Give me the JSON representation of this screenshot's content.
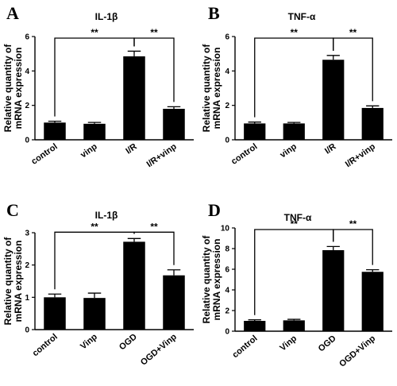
{
  "chart_data": [
    {
      "type": "bar",
      "panel": "A",
      "title": "IL-1β",
      "ylabel_lines": [
        "Relative quantity of",
        "mRNA expression"
      ],
      "categories": [
        "control",
        "vinp",
        "I/R",
        "I/R+vinp"
      ],
      "values": [
        1.0,
        0.93,
        4.85,
        1.8
      ],
      "errors": [
        0.08,
        0.08,
        0.3,
        0.12
      ],
      "ylim": [
        0,
        6
      ],
      "yticks": [
        0,
        2,
        4,
        6
      ],
      "significance": [
        {
          "from": 0,
          "to": 2,
          "label": "**"
        },
        {
          "from": 2,
          "to": 3,
          "label": "**"
        }
      ]
    },
    {
      "type": "bar",
      "panel": "B",
      "title": "TNF-α",
      "ylabel_lines": [
        "Relative quantity of",
        "mRNA expression"
      ],
      "categories": [
        "control",
        "vinp",
        "I/R",
        "I/R+vinp"
      ],
      "values": [
        0.95,
        0.95,
        4.65,
        1.85
      ],
      "errors": [
        0.08,
        0.06,
        0.25,
        0.12
      ],
      "ylim": [
        0,
        6
      ],
      "yticks": [
        0,
        2,
        4,
        6
      ],
      "significance": [
        {
          "from": 0,
          "to": 2,
          "label": "**"
        },
        {
          "from": 2,
          "to": 3,
          "label": "**"
        }
      ]
    },
    {
      "type": "bar",
      "panel": "C",
      "title": "IL-1β",
      "ylabel_lines": [
        "Relative quantity of",
        "mRNA expression"
      ],
      "categories": [
        "control",
        "Vinp",
        "OGD",
        "OGD+Vinp"
      ],
      "values": [
        1.0,
        0.98,
        2.72,
        1.68
      ],
      "errors": [
        0.1,
        0.15,
        0.1,
        0.17
      ],
      "ylim": [
        0,
        3
      ],
      "yticks": [
        0,
        1,
        2,
        3
      ],
      "significance": [
        {
          "from": 0,
          "to": 2,
          "label": "**"
        },
        {
          "from": 2,
          "to": 3,
          "label": "**"
        }
      ]
    },
    {
      "type": "bar",
      "panel": "D",
      "title": "TNF-α",
      "ylabel_lines": [
        "Relative quantity of",
        "mRNA expression"
      ],
      "categories": [
        "control",
        "Vinp",
        "OGD",
        "OGD+Vinp"
      ],
      "values": [
        1.0,
        1.05,
        7.85,
        5.75
      ],
      "errors": [
        0.1,
        0.1,
        0.35,
        0.2
      ],
      "ylim": [
        0,
        10
      ],
      "yticks": [
        0,
        2,
        4,
        6,
        8,
        10
      ],
      "significance": [
        {
          "from": 0,
          "to": 2,
          "label": "**"
        },
        {
          "from": 2,
          "to": 3,
          "label": "**"
        }
      ]
    }
  ]
}
